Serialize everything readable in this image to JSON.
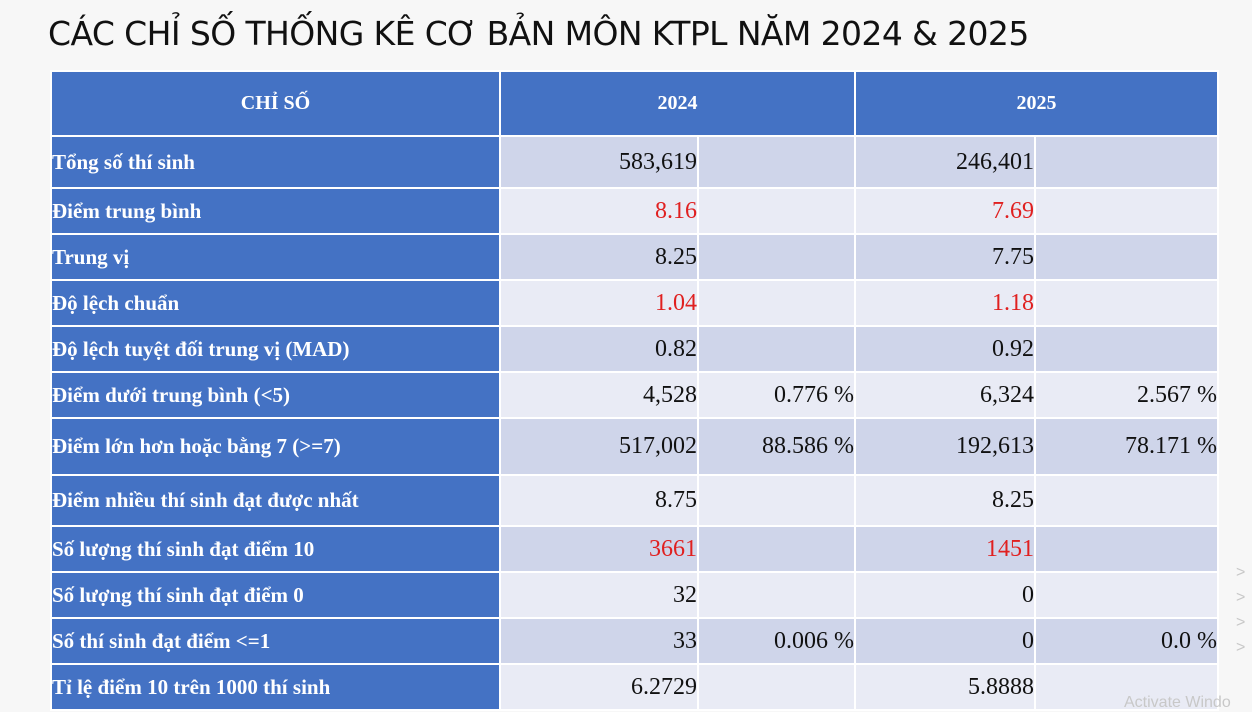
{
  "title": "CÁC CHỈ SỐ THỐNG KÊ CƠ BẢN MÔN KTPL NĂM 2024 & 2025",
  "table": {
    "headers": {
      "metric": "CHỈ SỐ",
      "y2024": "2024",
      "y2025": "2025"
    },
    "rows": [
      {
        "label": "Tổng số thí sinh",
        "v2024": "583,619",
        "p2024": "",
        "v2025": "246,401",
        "p2025": "",
        "height": 52
      },
      {
        "label": "Điểm trung bình",
        "v2024": "8.16",
        "p2024": "",
        "v2025": "7.69",
        "p2025": "",
        "red": true
      },
      {
        "label": "Trung vị",
        "v2024": "8.25",
        "p2024": "",
        "v2025": "7.75",
        "p2025": ""
      },
      {
        "label": "Độ lệch chuẩn",
        "v2024": "1.04",
        "p2024": "",
        "v2025": "1.18",
        "p2025": "",
        "red": true
      },
      {
        "label": "Độ lệch tuyệt đối trung vị (MAD)",
        "v2024": "0.82",
        "p2024": "",
        "v2025": "0.92",
        "p2025": ""
      },
      {
        "label": "Điểm dưới trung bình (<5)",
        "v2024": "4,528",
        "p2024": "0.776 %",
        "v2025": "6,324",
        "p2025": "2.567 %"
      },
      {
        "label": "Điểm lớn hơn hoặc bằng 7 (>=7)",
        "v2024": "517,002",
        "p2024": "88.586 %",
        "v2025": "192,613",
        "p2025": "78.171 %"
      },
      {
        "label": "Điểm nhiều thí sinh đạt được nhất",
        "v2024": "8.75",
        "p2024": "",
        "v2025": "8.25",
        "p2025": ""
      },
      {
        "label": "Số lượng thí sinh đạt điểm 10",
        "v2024": "3661",
        "p2024": "",
        "v2025": "1451",
        "p2025": "",
        "red": true
      },
      {
        "label": "Số lượng thí sinh đạt điểm 0",
        "v2024": "32",
        "p2024": "",
        "v2025": "0",
        "p2025": ""
      },
      {
        "label": "Số thí sinh đạt điểm <=1",
        "v2024": "33",
        "p2024": "0.006 %",
        "v2025": "0",
        "p2025": "0.0 %"
      },
      {
        "label": "Tỉ lệ điểm 10 trên 1000 thí sinh",
        "v2024": "6.2729",
        "p2024": "",
        "v2025": "5.8888",
        "p2025": ""
      }
    ]
  },
  "watermark": {
    "text": "Activate Windo",
    "marks": [
      ">",
      ">",
      ">",
      ">"
    ]
  }
}
